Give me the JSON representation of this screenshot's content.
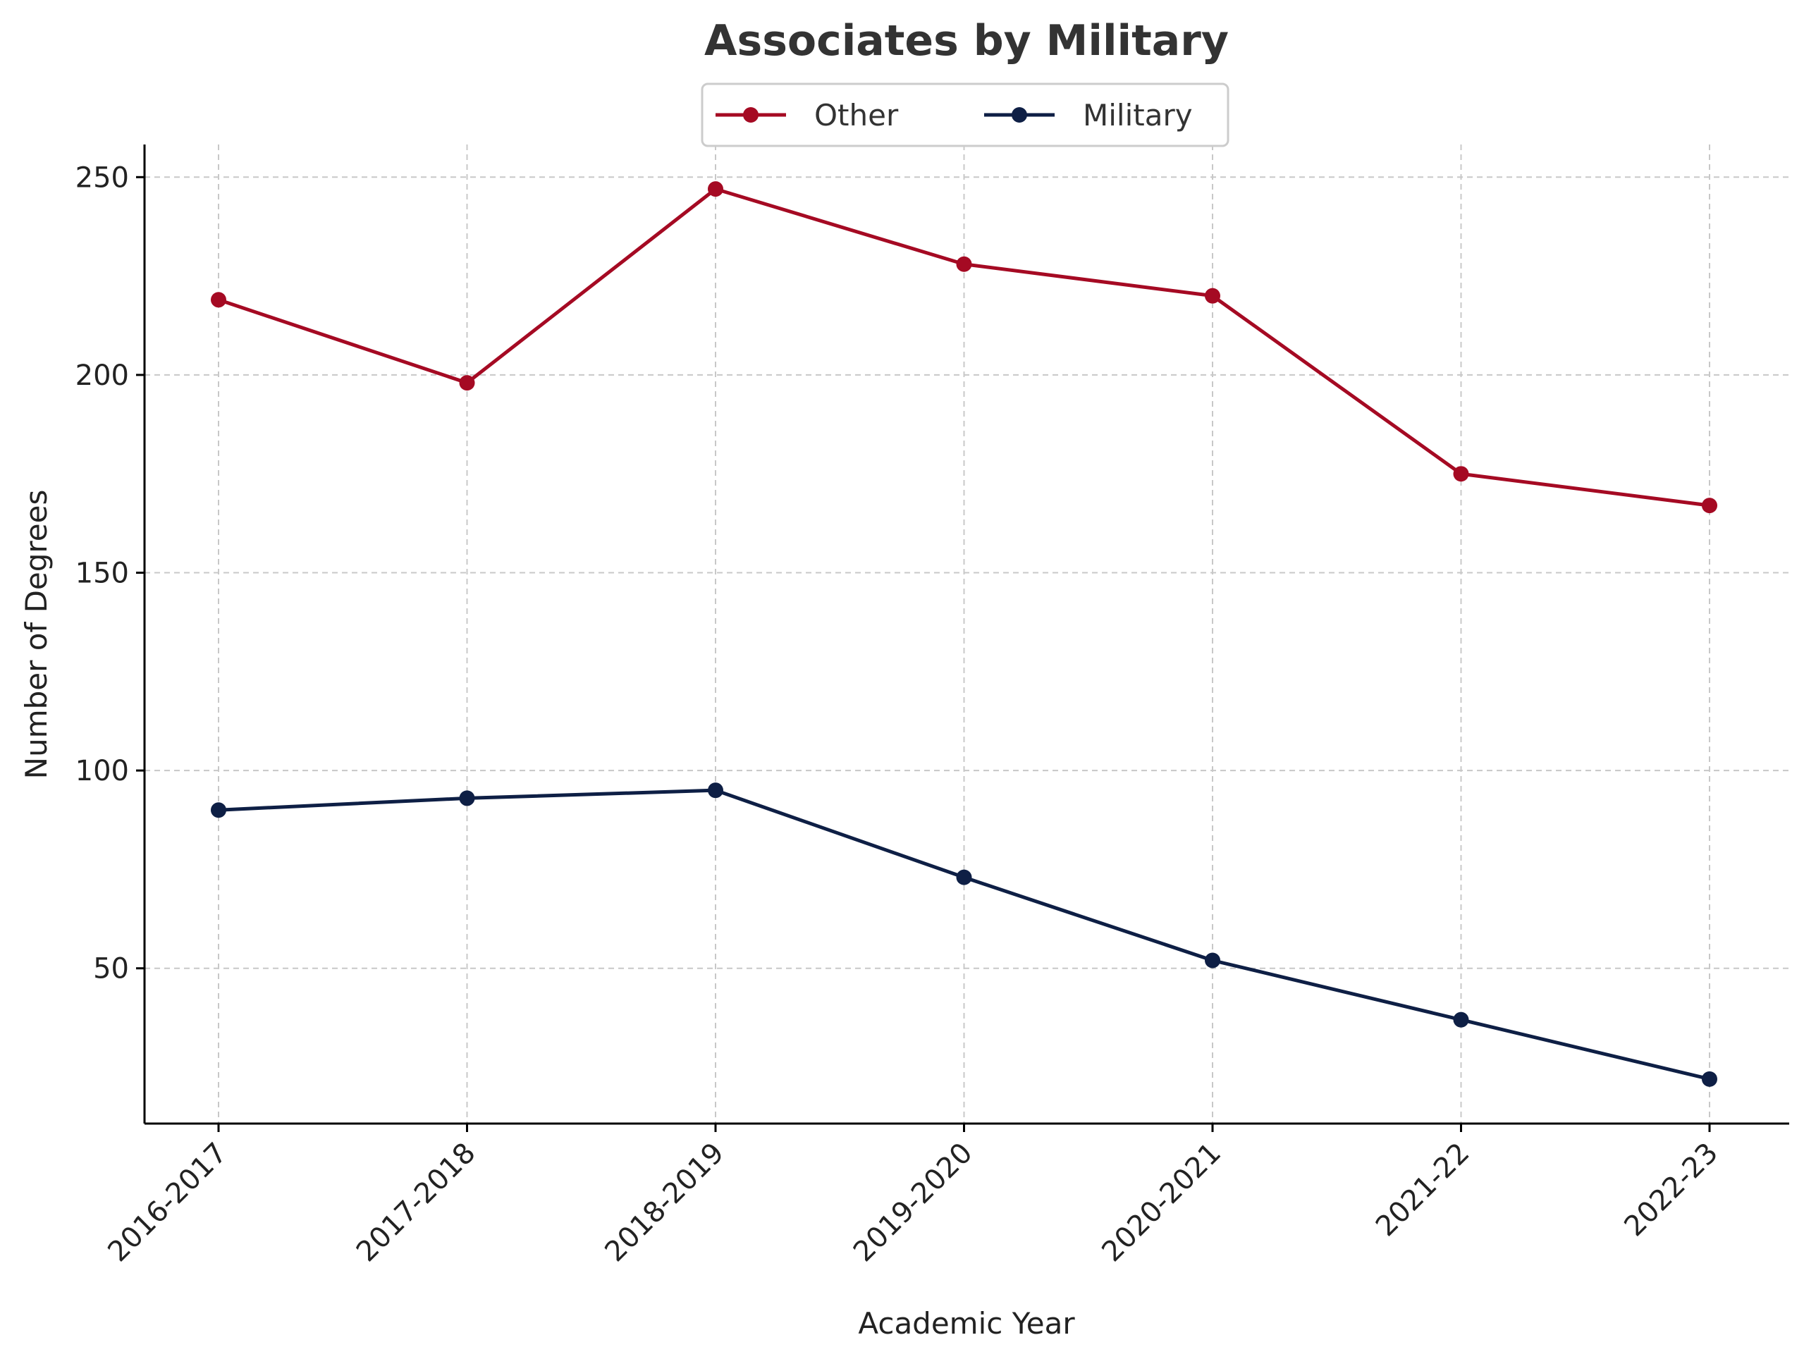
{
  "chart_data": {
    "type": "line",
    "title": "Associates by Military",
    "xlabel": "Academic Year",
    "ylabel": "Number of Degrees",
    "categories": [
      "2016-2017",
      "2017-2018",
      "2018-2019",
      "2019-2020",
      "2020-2021",
      "2021-22",
      "2022-23"
    ],
    "series": [
      {
        "name": "Other",
        "color": "#a50a23",
        "values": [
          219,
          198,
          247,
          228,
          220,
          175,
          167
        ]
      },
      {
        "name": "Military",
        "color": "#0e1f45",
        "values": [
          90,
          93,
          95,
          73,
          52,
          37,
          22
        ]
      }
    ],
    "yticks": [
      50,
      100,
      150,
      200,
      250
    ],
    "ylim": [
      10.75,
      258.25
    ],
    "grid": true,
    "legend": "top-center"
  }
}
